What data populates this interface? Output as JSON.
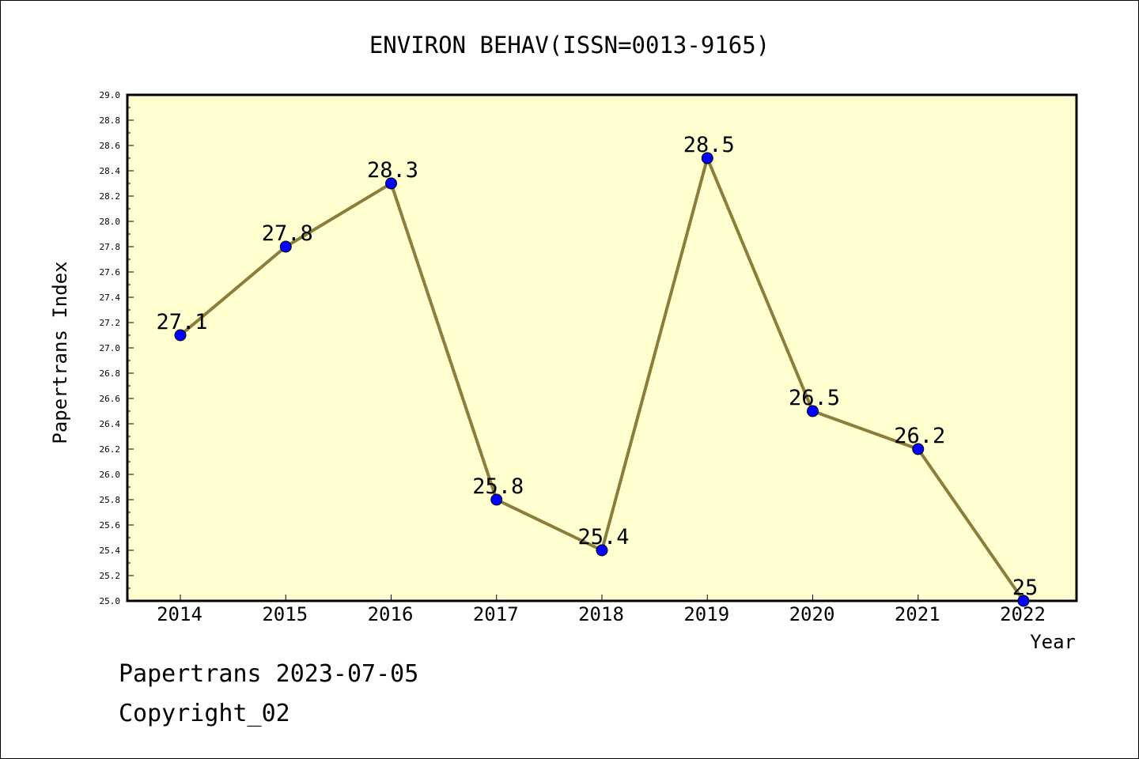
{
  "footer": {
    "line1": "Papertrans 2023-07-05",
    "line2": "Copyright_02"
  },
  "colors": {
    "plot_bg": "#FFFFD0",
    "line": "#8B7D3A",
    "marker": "#0000FF",
    "axis": "#000000"
  },
  "chart_data": {
    "type": "line",
    "title": "ENVIRON BEHAV(ISSN=0013-9165)",
    "xlabel": "Year",
    "ylabel": "Papertrans Index",
    "categories": [
      "2014",
      "2015",
      "2016",
      "2017",
      "2018",
      "2019",
      "2020",
      "2021",
      "2022"
    ],
    "series": [
      {
        "values": [
          27.1,
          27.8,
          28.3,
          25.8,
          25.4,
          28.5,
          26.5,
          26.2,
          25.0
        ],
        "labels": [
          "27.1",
          "27.8",
          "28.3",
          "25.8",
          "25.4",
          "28.5",
          "26.5",
          "26.2",
          "25"
        ]
      }
    ],
    "ylim": [
      25.0,
      29.0
    ],
    "yticks": [
      "25.0",
      "25.2",
      "25.4",
      "25.6",
      "25.8",
      "26.0",
      "26.2",
      "26.4",
      "26.6",
      "26.8",
      "27.0",
      "27.2",
      "27.4",
      "27.6",
      "27.8",
      "28.0",
      "28.2",
      "28.4",
      "28.6",
      "28.8",
      "29.0"
    ],
    "grid": false,
    "legend": "none"
  }
}
